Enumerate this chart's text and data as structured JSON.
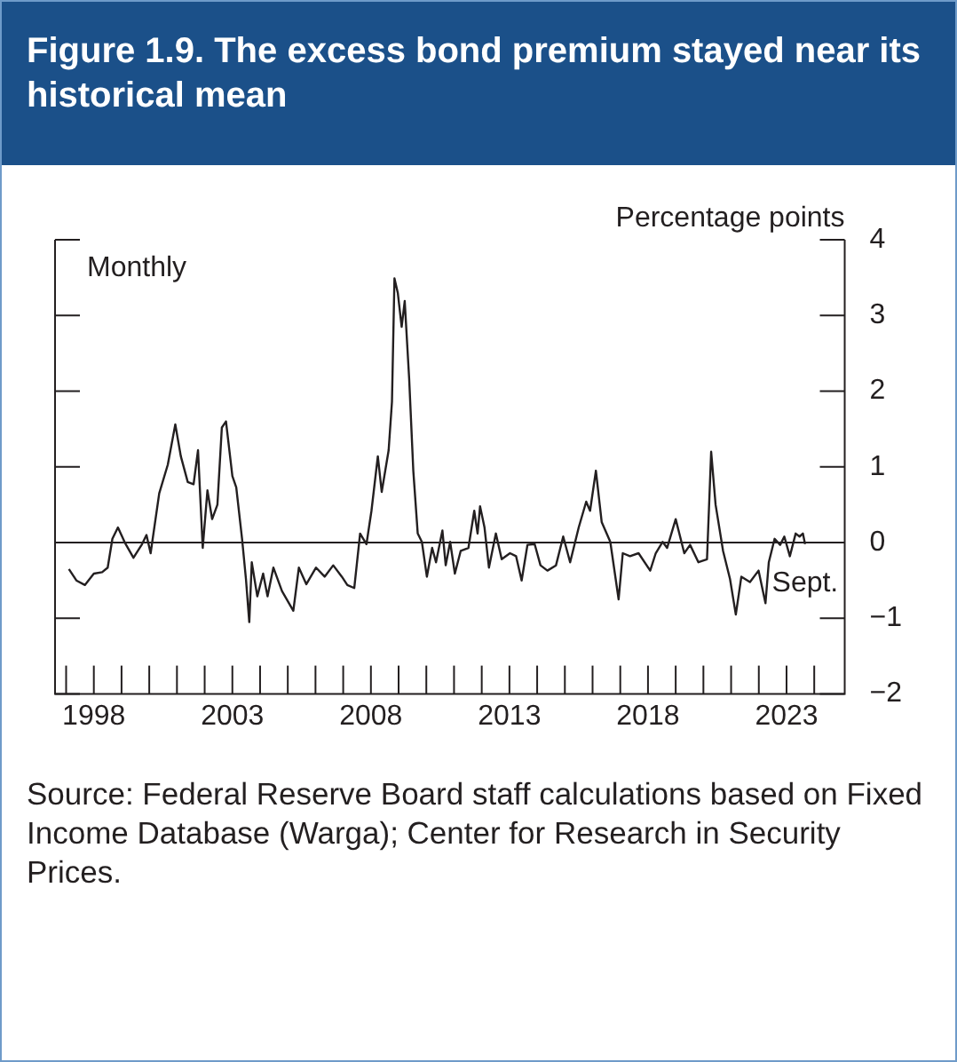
{
  "chart_data": {
    "type": "line",
    "title": "Figure 1.9. The excess bond premium stayed near its historical mean",
    "ylabel": "Percentage points",
    "series": [
      {
        "color": "#231f20",
        "x": [
          1997.1,
          1997.37,
          1997.68,
          1998.0,
          1998.3,
          1998.5,
          1998.67,
          1998.87,
          1999.12,
          1999.43,
          1999.74,
          1999.9,
          2000.05,
          2000.36,
          2000.67,
          2000.94,
          2001.14,
          2001.39,
          2001.6,
          2001.76,
          2001.93,
          2002.1,
          2002.27,
          2002.46,
          2002.62,
          2002.77,
          2003.0,
          2003.14,
          2003.35,
          2003.49,
          2003.61,
          2003.7,
          2003.9,
          2004.11,
          2004.27,
          2004.48,
          2004.79,
          2005.2,
          2005.4,
          2005.67,
          2006.02,
          2006.33,
          2006.64,
          2006.95,
          2007.15,
          2007.4,
          2007.61,
          2007.84,
          2008.02,
          2008.25,
          2008.39,
          2008.64,
          2008.76,
          2008.85,
          2008.97,
          2009.11,
          2009.22,
          2009.38,
          2009.53,
          2009.69,
          2009.84,
          2010.02,
          2010.21,
          2010.35,
          2010.58,
          2010.7,
          2010.86,
          2011.03,
          2011.24,
          2011.52,
          2011.73,
          2011.85,
          2011.94,
          2012.1,
          2012.26,
          2012.51,
          2012.72,
          2013.02,
          2013.24,
          2013.44,
          2013.65,
          2013.91,
          2014.12,
          2014.37,
          2014.68,
          2014.94,
          2015.19,
          2015.5,
          2015.77,
          2015.91,
          2016.12,
          2016.33,
          2016.64,
          2016.94,
          2017.09,
          2017.35,
          2017.66,
          2018.08,
          2018.28,
          2018.53,
          2018.69,
          2019.0,
          2019.31,
          2019.52,
          2019.82,
          2020.13,
          2020.28,
          2020.44,
          2020.71,
          2020.96,
          2021.17,
          2021.37,
          2021.68,
          2021.99,
          2022.24,
          2022.36,
          2022.57,
          2022.77,
          2022.92,
          2023.12,
          2023.33,
          2023.47,
          2023.59,
          2023.67
        ],
        "values": [
          -0.35,
          -0.5,
          -0.56,
          -0.41,
          -0.39,
          -0.33,
          0.05,
          0.2,
          0,
          -0.2,
          -0.02,
          0.1,
          -0.14,
          0.65,
          1.03,
          1.56,
          1.14,
          0.8,
          0.77,
          1.22,
          -0.07,
          0.69,
          0.31,
          0.5,
          1.52,
          1.6,
          0.88,
          0.73,
          0.05,
          -0.48,
          -1.05,
          -0.26,
          -0.71,
          -0.41,
          -0.71,
          -0.33,
          -0.64,
          -0.9,
          -0.33,
          -0.55,
          -0.33,
          -0.45,
          -0.3,
          -0.45,
          -0.56,
          -0.6,
          0.12,
          -0.02,
          0.42,
          1.14,
          0.67,
          1.22,
          1.86,
          3.49,
          3.3,
          2.85,
          3.19,
          2.17,
          0.95,
          0.12,
          0.01,
          -0.45,
          -0.07,
          -0.26,
          0.16,
          -0.3,
          0.01,
          -0.41,
          -0.11,
          -0.07,
          0.42,
          0.12,
          0.48,
          0.2,
          -0.33,
          0.12,
          -0.22,
          -0.14,
          -0.18,
          -0.5,
          -0.03,
          -0.02,
          -0.3,
          -0.37,
          -0.3,
          0.08,
          -0.26,
          0.2,
          0.54,
          0.42,
          0.95,
          0.27,
          0.01,
          -0.75,
          -0.14,
          -0.18,
          -0.14,
          -0.37,
          -0.14,
          0.01,
          -0.07,
          0.31,
          -0.14,
          -0.03,
          -0.26,
          -0.22,
          1.2,
          0.5,
          -0.11,
          -0.48,
          -0.95,
          -0.45,
          -0.52,
          -0.37,
          -0.8,
          -0.26,
          0.05,
          -0.03,
          0.08,
          -0.18,
          0.12,
          0.08,
          0.12,
          -0.02
        ]
      }
    ],
    "xlim": [
      1996.6,
      2025.1
    ],
    "xticks": [
      {
        "value": 1997,
        "label": null
      },
      1998,
      {
        "value": 1999,
        "label": null
      },
      {
        "value": 2000,
        "label": null
      },
      {
        "value": 2001,
        "label": null
      },
      {
        "value": 2002,
        "label": null
      },
      2003,
      {
        "value": 2004,
        "label": null
      },
      {
        "value": 2005,
        "label": null
      },
      {
        "value": 2006,
        "label": null
      },
      {
        "value": 2007,
        "label": null
      },
      2008,
      {
        "value": 2009,
        "label": null
      },
      {
        "value": 2010,
        "label": null
      },
      {
        "value": 2011,
        "label": null
      },
      {
        "value": 2012,
        "label": null
      },
      2013,
      {
        "value": 2014,
        "label": null
      },
      {
        "value": 2015,
        "label": null
      },
      {
        "value": 2016,
        "label": null
      },
      {
        "value": 2017,
        "label": null
      },
      2018,
      {
        "value": 2019,
        "label": null
      },
      {
        "value": 2020,
        "label": null
      },
      {
        "value": 2021,
        "label": null
      },
      {
        "value": 2022,
        "label": null
      },
      2023,
      {
        "value": 2024,
        "label": null
      }
    ],
    "ylim": [
      -2,
      4
    ],
    "yticks": [
      -2,
      -1,
      0,
      1,
      2,
      3,
      4
    ],
    "ref_lines": [
      {
        "axis": "y",
        "value": 0,
        "color": "#231f20"
      }
    ],
    "grid": false,
    "legend": false,
    "marker": "none",
    "line_style": "solid",
    "annotations": [
      "Monthly",
      {
        "text": "Sept.",
        "x": 2023.67,
        "y": -0.02
      },
      "Source: Federal Reserve Board staff calculations based on Fixed Income Database (Warga); Center for Research in Security Prices."
    ]
  }
}
